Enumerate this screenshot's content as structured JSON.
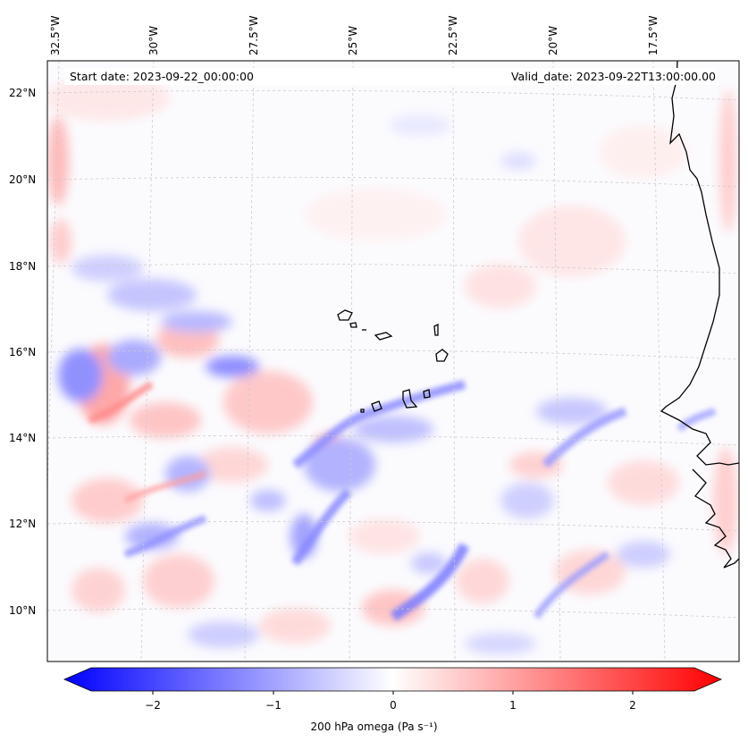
{
  "map": {
    "start_date": "Start date: 2023-09-22_00:00:00",
    "valid_date": "Valid_date: 2023-09-22T13:00:00.00",
    "lon_labels": [
      "32.5°W",
      "30°W",
      "27.5°W",
      "25°W",
      "22.5°W",
      "20°W",
      "17.5°W"
    ],
    "lat_labels": [
      "22°N",
      "20°N",
      "18°N",
      "16°N",
      "14°N",
      "12°N",
      "10°N"
    ],
    "gridlines": true
  },
  "colorbar": {
    "ticks": [
      "−2",
      "−1",
      "0",
      "1",
      "2"
    ],
    "label": "200 hPa omega (Pa s⁻¹)",
    "min_color": "#0000ff",
    "mid_color": "#ffffff",
    "max_color": "#ff0000"
  }
}
